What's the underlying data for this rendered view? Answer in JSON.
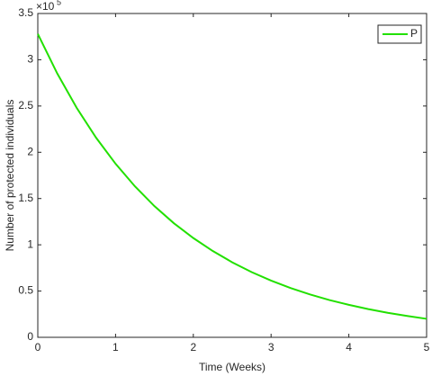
{
  "chart_data": {
    "type": "line",
    "x_label": "Time (Weeks)",
    "y_label": "Number of protected individuals",
    "y_exponent": {
      "base": "×10",
      "power": "5"
    },
    "x": [
      0,
      0.25,
      0.5,
      0.75,
      1,
      1.25,
      1.5,
      1.75,
      2,
      2.25,
      2.5,
      2.75,
      3,
      3.25,
      3.5,
      3.75,
      4,
      4.25,
      4.5,
      4.75,
      5
    ],
    "series": [
      {
        "name": "P",
        "color": "#22e000",
        "values": [
          3.28,
          2.852,
          2.48,
          2.157,
          1.876,
          1.631,
          1.418,
          1.233,
          1.073,
          0.933,
          0.811,
          0.705,
          0.613,
          0.533,
          0.464,
          0.403,
          0.351,
          0.305,
          0.265,
          0.231,
          0.2
        ]
      }
    ],
    "xlim": [
      0,
      5
    ],
    "xticks": [
      0,
      1,
      2,
      3,
      4,
      5
    ],
    "ylim": [
      0,
      3.5
    ],
    "yticks": [
      0,
      0.5,
      1,
      1.5,
      2,
      2.5,
      3,
      3.5
    ],
    "grid": false,
    "legend": "top-right"
  }
}
